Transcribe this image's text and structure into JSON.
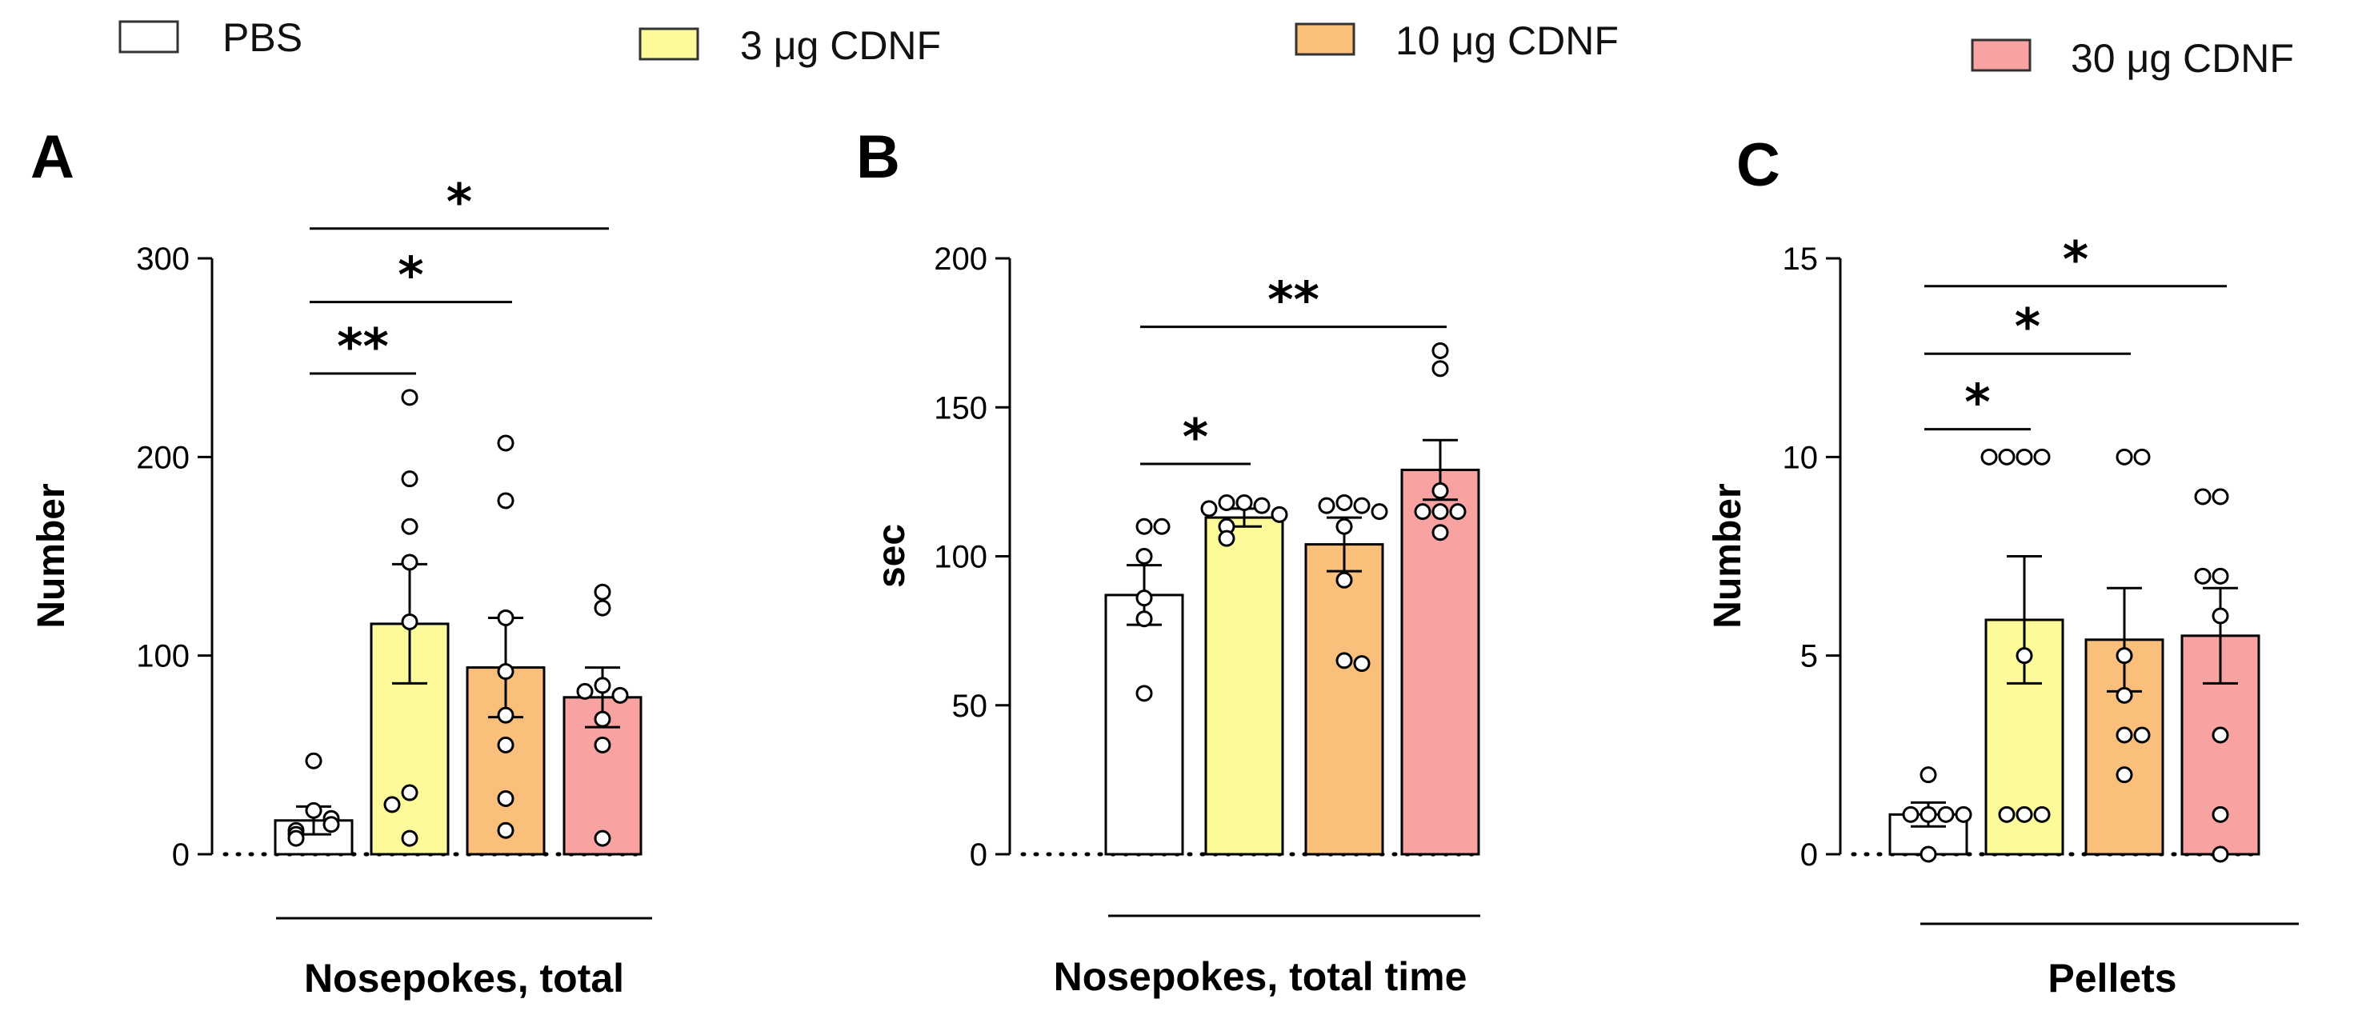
{
  "legend": [
    {
      "label": "PBS",
      "color": "#ffffff"
    },
    {
      "label": "3 μg CDNF",
      "color": "#fdfa9a"
    },
    {
      "label": "10 μg CDNF",
      "color": "#fbbf7c"
    },
    {
      "label": "30 μg CDNF",
      "color": "#f8a2a2"
    }
  ],
  "chart_data": [
    {
      "type": "bar",
      "panel": "A",
      "ylabel": "Number",
      "xlabel": "Nosepokes, total",
      "ylim": [
        0,
        300
      ],
      "yticks": [
        0,
        100,
        200,
        300
      ],
      "categories": [
        "PBS",
        "3 μg CDNF",
        "10 μg CDNF",
        "30 μg CDNF"
      ],
      "values": [
        17,
        116,
        94,
        79
      ],
      "sem": [
        7,
        30,
        25,
        15
      ],
      "points": [
        [
          47,
          22,
          18,
          15,
          12,
          10,
          8
        ],
        [
          230,
          189,
          165,
          147,
          117,
          31,
          25,
          8
        ],
        [
          207,
          178,
          119,
          92,
          70,
          55,
          28,
          12
        ],
        [
          132,
          124,
          85,
          82,
          80,
          68,
          55,
          8
        ]
      ],
      "significance": [
        {
          "from": 0,
          "to": 1,
          "label": "**",
          "y": 242
        },
        {
          "from": 0,
          "to": 2,
          "label": "*",
          "y": 278
        },
        {
          "from": 0,
          "to": 3,
          "label": "*",
          "y": 315
        }
      ]
    },
    {
      "type": "bar",
      "panel": "B",
      "ylabel": "sec",
      "xlabel": "Nosepokes, total time",
      "ylim": [
        0,
        200
      ],
      "yticks": [
        0,
        50,
        100,
        150,
        200
      ],
      "categories": [
        "PBS",
        "3 μg CDNF",
        "10 μg CDNF",
        "30 μg CDNF"
      ],
      "values": [
        87,
        113,
        104,
        129
      ],
      "sem": [
        10,
        3,
        9,
        10
      ],
      "points": [
        [
          110,
          110,
          100,
          86,
          79,
          54
        ],
        [
          118,
          118,
          117,
          116,
          114,
          110,
          106
        ],
        [
          118,
          117,
          117,
          115,
          110,
          92,
          65,
          64
        ],
        [
          169,
          163,
          122,
          115,
          115,
          115,
          108
        ]
      ],
      "significance": [
        {
          "from": 0,
          "to": 1,
          "label": "*",
          "y": 131
        },
        {
          "from": 0,
          "to": 3,
          "label": "**",
          "y": 177
        }
      ]
    },
    {
      "type": "bar",
      "panel": "C",
      "ylabel": "Number",
      "xlabel": "Pellets",
      "ylim": [
        0,
        15
      ],
      "yticks": [
        0,
        5,
        10,
        15
      ],
      "categories": [
        "PBS",
        "3 μg CDNF",
        "10 μg CDNF",
        "30 μg CDNF"
      ],
      "values": [
        1,
        5.9,
        5.4,
        5.5
      ],
      "sem": [
        0.3,
        1.6,
        1.3,
        1.2
      ],
      "points": [
        [
          2,
          1,
          1,
          1,
          1,
          0
        ],
        [
          10,
          10,
          10,
          10,
          5,
          1,
          1,
          1
        ],
        [
          10,
          10,
          5,
          4,
          3,
          3,
          2
        ],
        [
          9,
          9,
          7,
          7,
          6,
          3,
          1,
          0
        ]
      ],
      "significance": [
        {
          "from": 0,
          "to": 1,
          "label": "*",
          "y": 10.7
        },
        {
          "from": 0,
          "to": 2,
          "label": "*",
          "y": 12.6
        },
        {
          "from": 0,
          "to": 3,
          "label": "*",
          "y": 14.3
        }
      ]
    }
  ]
}
